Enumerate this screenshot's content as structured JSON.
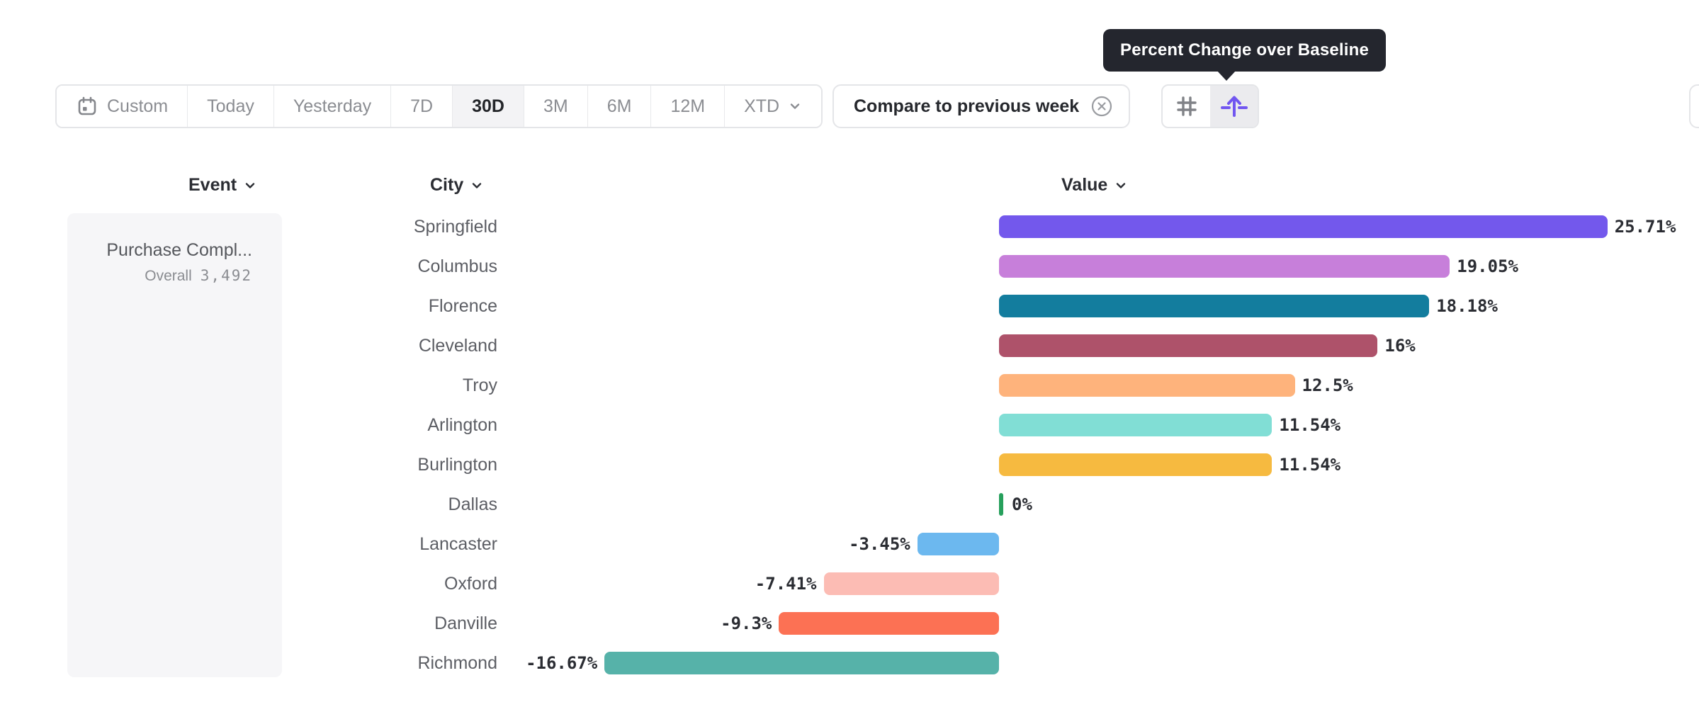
{
  "tooltip": {
    "text": "Percent Change over Baseline"
  },
  "toolbar": {
    "date_ranges": [
      {
        "label": "Custom",
        "icon": "calendar-icon",
        "selected": false
      },
      {
        "label": "Today",
        "selected": false
      },
      {
        "label": "Yesterday",
        "selected": false
      },
      {
        "label": "7D",
        "selected": false
      },
      {
        "label": "30D",
        "selected": true
      },
      {
        "label": "3M",
        "selected": false
      },
      {
        "label": "6M",
        "selected": false
      },
      {
        "label": "12M",
        "selected": false
      },
      {
        "label": "XTD",
        "chevron": true,
        "selected": false
      }
    ],
    "compare": {
      "label": "Compare to previous week"
    },
    "view_toggle": [
      {
        "name": "absolute-numbers",
        "icon": "hash-icon",
        "selected": false
      },
      {
        "name": "percent-change",
        "icon": "percent-change-arrow-icon",
        "selected": true
      }
    ]
  },
  "columns": {
    "event": "Event",
    "city": "City",
    "value": "Value"
  },
  "event_panel": {
    "name": "Purchase Compl...",
    "segment_label": "Overall",
    "segment_value": "3,492"
  },
  "chart_data": {
    "type": "bar",
    "orientation": "horizontal",
    "title": "Percent Change over Baseline",
    "value_unit": "%",
    "categories": [
      "Springfield",
      "Columbus",
      "Florence",
      "Cleveland",
      "Troy",
      "Arlington",
      "Burlington",
      "Dallas",
      "Lancaster",
      "Oxford",
      "Danville",
      "Richmond"
    ],
    "values": [
      25.71,
      19.05,
      18.18,
      16,
      12.5,
      11.54,
      11.54,
      0,
      -3.45,
      -7.41,
      -9.3,
      -16.67
    ],
    "value_labels": [
      "25.71%",
      "19.05%",
      "18.18%",
      "16%",
      "12.5%",
      "11.54%",
      "11.54%",
      "0%",
      "-3.45%",
      "-7.41%",
      "-9.3%",
      "-16.67%"
    ],
    "bar_colors": [
      "#7358ec",
      "#c77fda",
      "#137d9e",
      "#ae526a",
      "#feb37c",
      "#81ded5",
      "#f6ba40",
      "#27a05c",
      "#6cb8ef",
      "#fcbcb4",
      "#fc7154",
      "#56b2a9"
    ],
    "baseline": 0,
    "xlim": [
      -20,
      28
    ],
    "grid": false,
    "legend": false
  },
  "colors": {
    "accent_purple": "#7156f0",
    "tooltip_bg": "#24262e",
    "border": "#e4e5e8",
    "text_dark": "#2b2d33",
    "text_gray": "#8b8d92",
    "panel_bg": "#f6f6f8"
  }
}
